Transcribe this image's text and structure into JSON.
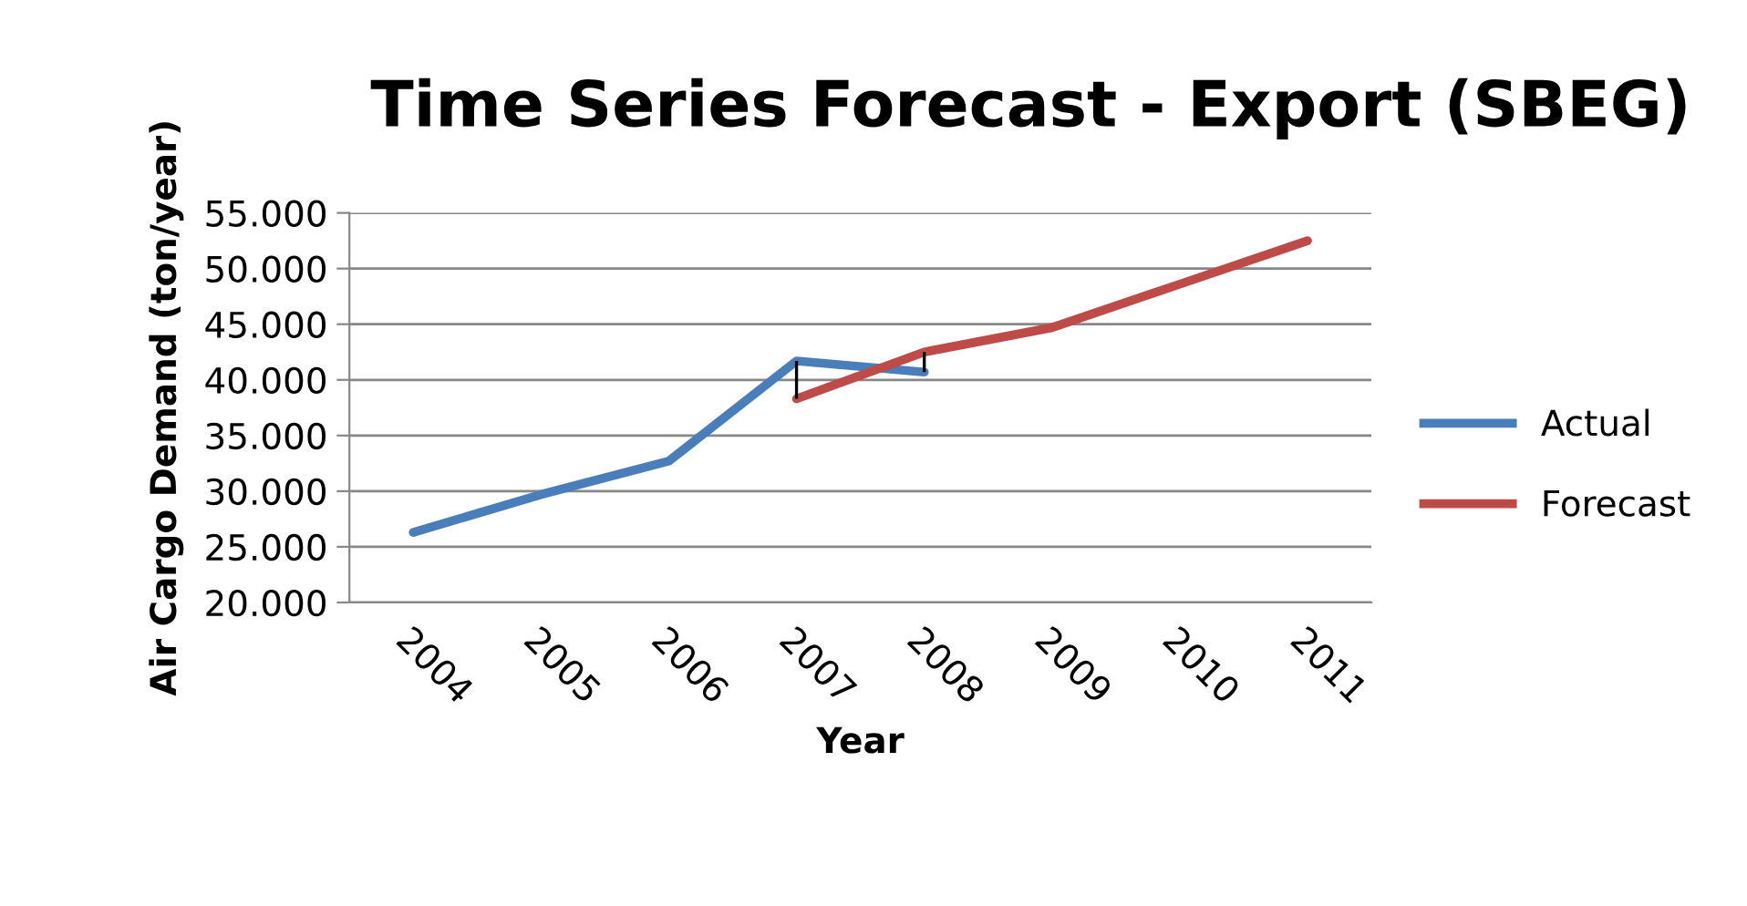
{
  "chart_data": {
    "type": "line",
    "title": "Time Series Forecast - Export (SBEG)",
    "xlabel": "Year",
    "ylabel": "Air Cargo Demand (ton/year)",
    "categories": [
      "2004",
      "2005",
      "2006",
      "2007",
      "2008",
      "2009",
      "2010",
      "2011"
    ],
    "series": [
      {
        "name": "Actual",
        "color": "#4a7ebb",
        "values": [
          26300,
          29700,
          32700,
          41700,
          40700,
          null,
          null,
          null
        ],
        "errors": [
          null,
          null,
          null,
          [
            38300,
            41700
          ],
          [
            40700,
            42500
          ],
          null,
          null,
          null
        ]
      },
      {
        "name": "Forecast",
        "color": "#be4b48",
        "values": [
          null,
          null,
          null,
          38300,
          42500,
          44700,
          48600,
          52500
        ]
      }
    ],
    "ylim": [
      20000,
      55000
    ],
    "yticks": [
      {
        "value": 20000,
        "label": "20.000"
      },
      {
        "value": 25000,
        "label": "25.000"
      },
      {
        "value": 30000,
        "label": "30.000"
      },
      {
        "value": 35000,
        "label": "35.000"
      },
      {
        "value": 40000,
        "label": "40.000"
      },
      {
        "value": 45000,
        "label": "45.000"
      },
      {
        "value": 50000,
        "label": "50.000"
      },
      {
        "value": 55000,
        "label": "55.000"
      }
    ],
    "grid": "y",
    "legend": "right",
    "marker": "none",
    "line_style": "solid"
  }
}
